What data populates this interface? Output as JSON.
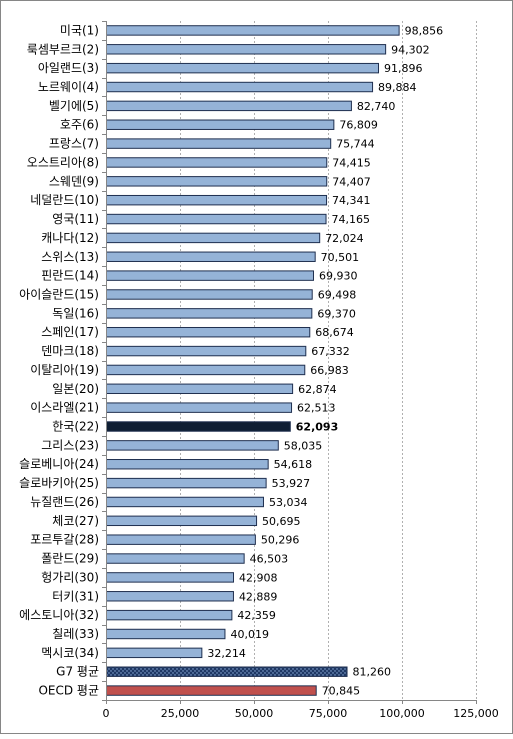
{
  "chart_data": {
    "type": "bar",
    "orientation": "horizontal",
    "title": "",
    "xlabel": "",
    "ylabel": "",
    "xlim": [
      0,
      125000
    ],
    "x_ticks": [
      0,
      25000,
      50000,
      75000,
      100000,
      125000
    ],
    "x_tick_labels": [
      "0",
      "25,000",
      "50,000",
      "75,000",
      "100,000",
      "125,000"
    ],
    "grid": "vertical-dotted",
    "legend": "none",
    "colors": {
      "default": "#95b3d7",
      "highlight": "#0f1e33",
      "g7": "#1f3864",
      "oecd": "#c0504d"
    },
    "categories": [
      "미국(1)",
      "룩셈부르크(2)",
      "아일랜드(3)",
      "노르웨이(4)",
      "벨기에(5)",
      "호주(6)",
      "프랑스(7)",
      "오스트리아(8)",
      "스웨덴(9)",
      "네덜란드(10)",
      "영국(11)",
      "캐나다(12)",
      "스위스(13)",
      "핀란드(14)",
      "아이슬란드(15)",
      "독일(16)",
      "스페인(17)",
      "덴마크(18)",
      "이탈리아(19)",
      "일본(20)",
      "이스라엘(21)",
      "한국(22)",
      "그리스(23)",
      "슬로베니아(24)",
      "슬로바키아(25)",
      "뉴질랜드(26)",
      "체코(27)",
      "포르투갈(28)",
      "폴란드(29)",
      "헝가리(30)",
      "터키(31)",
      "에스토니아(32)",
      "칠레(33)",
      "멕시코(34)",
      "G7 평균",
      "OECD 평균"
    ],
    "values": [
      98856,
      94302,
      91896,
      89884,
      82740,
      76809,
      75744,
      74415,
      74407,
      74341,
      74165,
      72024,
      70501,
      69930,
      69498,
      69370,
      68674,
      67332,
      66983,
      62874,
      62513,
      62093,
      58035,
      54618,
      53927,
      53034,
      50695,
      50296,
      46503,
      42908,
      42889,
      42359,
      40019,
      32214,
      81260,
      70845
    ],
    "value_labels": [
      "98,856",
      "94,302",
      "91,896",
      "89,884",
      "82,740",
      "76,809",
      "75,744",
      "74,415",
      "74,407",
      "74,341",
      "74,165",
      "72,024",
      "70,501",
      "69,930",
      "69,498",
      "69,370",
      "68,674",
      "67,332",
      "66,983",
      "62,874",
      "62,513",
      "62,093",
      "58,035",
      "54,618",
      "53,927",
      "53,034",
      "50,695",
      "50,296",
      "46,503",
      "42,908",
      "42,889",
      "42,359",
      "40,019",
      "32,214",
      "81,260",
      "70,845"
    ],
    "bar_styles": [
      "default",
      "default",
      "default",
      "default",
      "default",
      "default",
      "default",
      "default",
      "default",
      "default",
      "default",
      "default",
      "default",
      "default",
      "default",
      "default",
      "default",
      "default",
      "default",
      "default",
      "default",
      "highlight",
      "default",
      "default",
      "default",
      "default",
      "default",
      "default",
      "default",
      "default",
      "default",
      "default",
      "default",
      "default",
      "g7",
      "oecd"
    ]
  }
}
